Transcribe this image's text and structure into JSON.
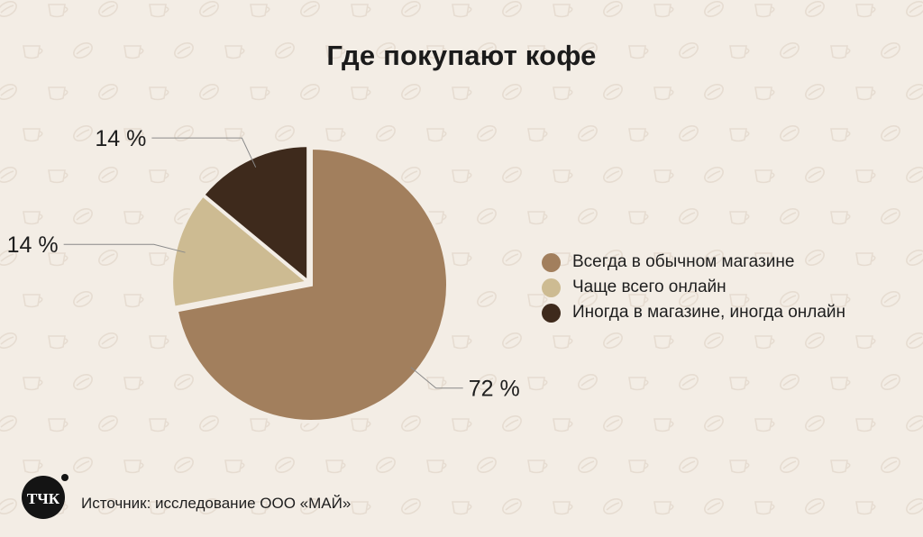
{
  "title": "Где покупают кофе",
  "chart_data": {
    "type": "pie",
    "title": "Где покупают кофе",
    "slices": [
      {
        "label": "Всегда в обычном магазине",
        "value": 72,
        "value_label": "72 %",
        "color": "#a27f5d"
      },
      {
        "label": "Чаще всего онлайн",
        "value": 14,
        "value_label": "14 %",
        "color": "#cdbb92"
      },
      {
        "label": "Иногда в магазине, иногда онлайн",
        "value": 14,
        "value_label": "14 %",
        "color": "#3e2a1c"
      }
    ],
    "legend_position": "right"
  },
  "source": "Источник: исследование ООО «МАЙ»",
  "logo_text": "ТЧК"
}
